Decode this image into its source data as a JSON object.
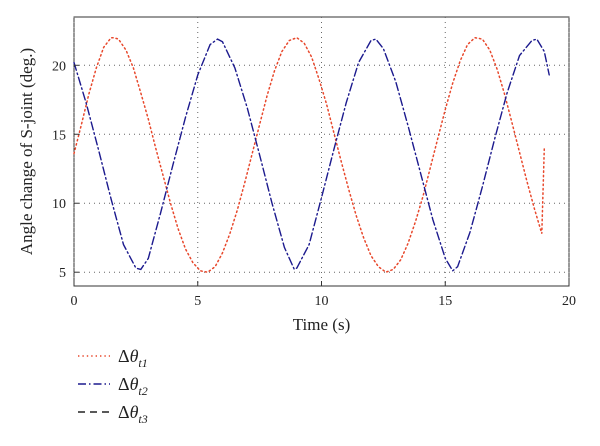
{
  "chart_data": {
    "type": "line",
    "xlabel": "Time (s)",
    "ylabel": "Angle change of S-joint (deg.)",
    "xlim": [
      0,
      20
    ],
    "ylim": [
      4,
      23.5
    ],
    "xticks": [
      "0",
      "5",
      "10",
      "15",
      "20"
    ],
    "yticks": [
      "5",
      "10",
      "15",
      "20"
    ],
    "grid": true,
    "legend_position": "below",
    "series": [
      {
        "name": "Δθt1",
        "color": "#e8482c",
        "style": "dotted",
        "x": [
          0.0,
          0.3,
          0.6,
          0.9,
          1.2,
          1.5,
          1.6,
          1.8,
          2.1,
          2.4,
          2.7,
          3.0,
          3.3,
          3.6,
          3.9,
          4.2,
          4.5,
          4.8,
          5.1,
          5.4,
          5.7,
          6.0,
          6.3,
          6.6,
          6.9,
          7.2,
          7.5,
          7.8,
          8.1,
          8.4,
          8.7,
          9.0,
          9.3,
          9.6,
          9.9,
          10.2,
          10.5,
          10.8,
          11.1,
          11.4,
          11.7,
          12.0,
          12.3,
          12.6,
          12.9,
          13.2,
          13.5,
          13.8,
          14.1,
          14.4,
          14.7,
          15.0,
          15.3,
          15.6,
          15.9,
          16.2,
          16.5,
          16.8,
          17.1,
          17.4,
          17.7,
          18.0,
          18.3,
          18.6,
          18.9,
          19.0
        ],
        "y": [
          13.6,
          15.7,
          17.9,
          19.8,
          21.3,
          22.0,
          22.0,
          21.9,
          21.1,
          19.8,
          18.0,
          16.1,
          14.0,
          12.0,
          10.0,
          8.2,
          6.7,
          5.7,
          5.1,
          5.0,
          5.4,
          6.4,
          7.8,
          9.5,
          11.5,
          13.6,
          15.7,
          17.8,
          19.6,
          21.0,
          21.8,
          22.0,
          21.6,
          20.6,
          19.0,
          17.2,
          15.1,
          13.0,
          11.0,
          9.1,
          7.5,
          6.2,
          5.4,
          5.0,
          5.2,
          5.9,
          7.1,
          8.7,
          10.5,
          12.6,
          14.7,
          16.8,
          18.7,
          20.3,
          21.5,
          22.0,
          21.9,
          21.1,
          19.7,
          17.9,
          15.8,
          13.7,
          11.6,
          9.6,
          7.8,
          14.0
        ]
      },
      {
        "name": "Δθt2",
        "color": "#1c1a8e",
        "style": "dashdot",
        "x": [
          0.0,
          0.5,
          1.0,
          1.5,
          2.0,
          2.5,
          2.7,
          3.0,
          3.5,
          4.0,
          4.5,
          5.0,
          5.5,
          5.8,
          6.0,
          6.5,
          7.0,
          7.5,
          8.0,
          8.5,
          8.9,
          9.0,
          9.5,
          10.0,
          10.5,
          11.0,
          11.5,
          12.0,
          12.2,
          12.5,
          13.0,
          13.5,
          14.0,
          14.5,
          15.0,
          15.3,
          15.5,
          16.0,
          16.5,
          17.0,
          17.5,
          18.0,
          18.5,
          18.7,
          19.0,
          19.2
        ],
        "y": [
          20.2,
          17.2,
          13.8,
          10.3,
          7.0,
          5.3,
          5.2,
          6.0,
          9.3,
          12.8,
          16.2,
          19.3,
          21.5,
          21.9,
          21.7,
          19.8,
          16.9,
          13.5,
          10.0,
          6.8,
          5.2,
          5.3,
          7.0,
          10.4,
          13.9,
          17.3,
          20.2,
          21.8,
          21.9,
          21.2,
          18.8,
          15.6,
          12.2,
          8.8,
          6.0,
          5.1,
          5.4,
          7.9,
          11.2,
          14.7,
          18.0,
          20.7,
          21.8,
          21.9,
          21.0,
          19.3
        ]
      },
      {
        "name": "Δθt3",
        "color": "#222222",
        "style": "dashed",
        "x": [],
        "y": []
      }
    ]
  }
}
